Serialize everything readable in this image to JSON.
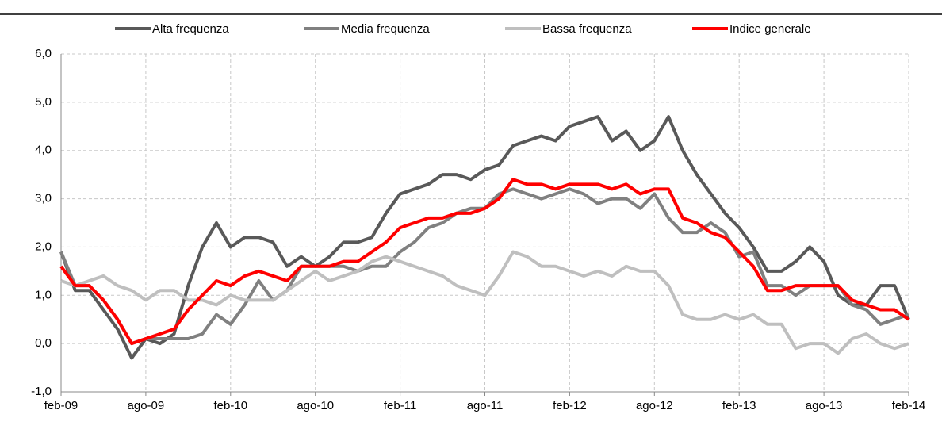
{
  "chart_data": {
    "type": "line",
    "categories": [
      "feb-09",
      null,
      null,
      null,
      null,
      null,
      "ago-09",
      null,
      null,
      null,
      null,
      null,
      "feb-10",
      null,
      null,
      null,
      null,
      null,
      "ago-10",
      null,
      null,
      null,
      null,
      null,
      "feb-11",
      null,
      null,
      null,
      null,
      null,
      "ago-11",
      null,
      null,
      null,
      null,
      null,
      "feb-12",
      null,
      null,
      null,
      null,
      null,
      "ago-12",
      null,
      null,
      null,
      null,
      null,
      "feb-13",
      null,
      null,
      null,
      null,
      null,
      "ago-13",
      null,
      null,
      null,
      null,
      null,
      "feb-14"
    ],
    "series": [
      {
        "name": "Alta frequenza",
        "color": "#595959",
        "values": [
          1.9,
          1.1,
          1.1,
          0.7,
          0.3,
          -0.3,
          0.1,
          0.0,
          0.2,
          1.2,
          2.0,
          2.5,
          2.0,
          2.2,
          2.2,
          2.1,
          1.6,
          1.8,
          1.6,
          1.8,
          2.1,
          2.1,
          2.2,
          2.7,
          3.1,
          3.2,
          3.3,
          3.5,
          3.5,
          3.4,
          3.6,
          3.7,
          4.1,
          4.2,
          4.3,
          4.2,
          4.5,
          4.6,
          4.7,
          4.2,
          4.4,
          4.0,
          4.2,
          4.7,
          4.0,
          3.5,
          3.1,
          2.7,
          2.4,
          2.0,
          1.5,
          1.5,
          1.7,
          2.0,
          1.7,
          1.0,
          0.8,
          0.8,
          1.2,
          1.2,
          0.5
        ]
      },
      {
        "name": "Media frequenza",
        "color": "#808080",
        "values": [
          1.9,
          1.2,
          1.2,
          0.9,
          0.5,
          0.0,
          0.1,
          0.1,
          0.1,
          0.1,
          0.2,
          0.6,
          0.4,
          0.8,
          1.3,
          0.9,
          1.1,
          1.6,
          1.6,
          1.6,
          1.6,
          1.5,
          1.6,
          1.6,
          1.9,
          2.1,
          2.4,
          2.5,
          2.7,
          2.8,
          2.8,
          3.1,
          3.2,
          3.1,
          3.0,
          3.1,
          3.2,
          3.1,
          2.9,
          3.0,
          3.0,
          2.8,
          3.1,
          2.6,
          2.3,
          2.3,
          2.5,
          2.3,
          1.8,
          1.9,
          1.2,
          1.2,
          1.0,
          1.2,
          1.2,
          1.2,
          0.8,
          0.7,
          0.4,
          0.5,
          0.6
        ]
      },
      {
        "name": "Bassa frequenza",
        "color": "#bfbfbf",
        "values": [
          1.3,
          1.2,
          1.3,
          1.4,
          1.2,
          1.1,
          0.9,
          1.1,
          1.1,
          0.9,
          0.9,
          0.8,
          1.0,
          0.9,
          0.9,
          0.9,
          1.1,
          1.3,
          1.5,
          1.3,
          1.4,
          1.5,
          1.7,
          1.8,
          1.7,
          1.6,
          1.5,
          1.4,
          1.2,
          1.1,
          1.0,
          1.4,
          1.9,
          1.8,
          1.6,
          1.6,
          1.5,
          1.4,
          1.5,
          1.4,
          1.6,
          1.5,
          1.5,
          1.2,
          0.6,
          0.5,
          0.5,
          0.6,
          0.5,
          0.6,
          0.4,
          0.4,
          -0.1,
          0.0,
          0.0,
          -0.2,
          0.1,
          0.2,
          0.0,
          -0.1,
          0.0
        ]
      },
      {
        "name": "Indice generale",
        "color": "#ff0000",
        "values": [
          1.6,
          1.2,
          1.2,
          0.9,
          0.5,
          0.0,
          0.1,
          0.2,
          0.3,
          0.7,
          1.0,
          1.3,
          1.2,
          1.4,
          1.5,
          1.4,
          1.3,
          1.6,
          1.6,
          1.6,
          1.7,
          1.7,
          1.9,
          2.1,
          2.4,
          2.5,
          2.6,
          2.6,
          2.7,
          2.7,
          2.8,
          3.0,
          3.4,
          3.3,
          3.3,
          3.2,
          3.3,
          3.3,
          3.3,
          3.2,
          3.3,
          3.1,
          3.2,
          3.2,
          2.6,
          2.5,
          2.3,
          2.2,
          1.9,
          1.6,
          1.1,
          1.1,
          1.2,
          1.2,
          1.2,
          1.2,
          0.9,
          0.8,
          0.7,
          0.7,
          0.5
        ]
      }
    ],
    "ylim": [
      -1,
      6
    ],
    "yticks": [
      {
        "value": -1,
        "label": "-1,0"
      },
      {
        "value": 0,
        "label": "0,0"
      },
      {
        "value": 1,
        "label": "1,0"
      },
      {
        "value": 2,
        "label": "2,0"
      },
      {
        "value": 3,
        "label": "3,0"
      },
      {
        "value": 4,
        "label": "4,0"
      },
      {
        "value": 5,
        "label": "5,0"
      },
      {
        "value": 6,
        "label": "6,0"
      }
    ],
    "grid": true,
    "legend": "top"
  }
}
